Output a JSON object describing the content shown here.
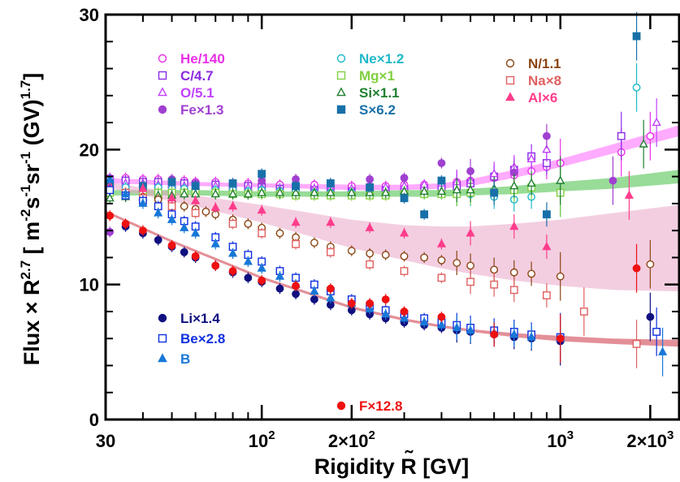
{
  "chart_data": {
    "type": "scatter",
    "title": "",
    "xlabel": "Rigidity  R̃ [GV]",
    "ylabel": "Flux × R̃^2.7 [ m⁻²s⁻¹sr⁻¹ (GV)^1.7]",
    "ylabel_parts": {
      "prefix": "Flux × ",
      "var": "R",
      "tilde": "˜",
      "exp": "2.7",
      "bracket_open": " [ m",
      "m_exp": "-2",
      "s": "s",
      "s_exp": "-1",
      "sr": "sr",
      "sr_exp": "-1",
      "unit": " (GV)",
      "unit_exp": "1.7",
      "bracket_close": "]"
    },
    "xlabel_parts": {
      "main": "Rigidity ",
      "var": "R",
      "tilde": "˜",
      "unit": " [GV]"
    },
    "x_scale": "log",
    "xlim": [
      30,
      2500
    ],
    "ylim": [
      0,
      30
    ],
    "x_ticks": [
      {
        "v": 30,
        "label": "30"
      },
      {
        "v": 100,
        "label": "10",
        "sup": "2"
      },
      {
        "v": 200,
        "label": "2×10",
        "sup": "2"
      },
      {
        "v": 1000,
        "label": "10",
        "sup": "3"
      },
      {
        "v": 2000,
        "label": "2×10",
        "sup": "3"
      }
    ],
    "y_ticks": [
      {
        "v": 0,
        "label": "0"
      },
      {
        "v": 10,
        "label": "10"
      },
      {
        "v": 20,
        "label": "20"
      },
      {
        "v": 30,
        "label": "30"
      }
    ],
    "grid": false,
    "legend_placement": "inside, top and bottom-left groups",
    "series": [
      {
        "name": "He/140",
        "color": "#e830e8",
        "marker": "circle-open",
        "x": [
          31,
          35,
          40,
          45,
          50,
          55,
          60,
          70,
          80,
          90,
          100,
          115,
          130,
          150,
          170,
          200,
          230,
          260,
          300,
          350,
          400,
          450,
          500,
          600,
          700,
          800,
          900,
          1000,
          1600,
          2000
        ],
        "y": [
          17.9,
          17.9,
          17.8,
          17.8,
          17.7,
          17.7,
          17.6,
          17.6,
          17.5,
          17.5,
          17.5,
          17.4,
          17.4,
          17.4,
          17.3,
          17.3,
          17.3,
          17.3,
          17.4,
          17.4,
          17.5,
          17.6,
          17.7,
          17.9,
          18.1,
          18.4,
          18.7,
          19.0,
          19.8,
          21.0
        ]
      },
      {
        "name": "C/4.7",
        "color": "#8a2be2",
        "marker": "square-open",
        "x": [
          31,
          35,
          40,
          45,
          50,
          55,
          60,
          70,
          80,
          90,
          100,
          115,
          130,
          150,
          170,
          200,
          230,
          260,
          300,
          350,
          400,
          450,
          500,
          600,
          700,
          800,
          900,
          1600
        ],
        "y": [
          17.8,
          17.7,
          17.6,
          17.6,
          17.5,
          17.5,
          17.4,
          17.4,
          17.3,
          17.3,
          17.2,
          17.1,
          17.1,
          17.0,
          17.0,
          16.9,
          16.9,
          17.0,
          17.0,
          17.1,
          17.2,
          17.3,
          17.5,
          18.0,
          18.5,
          19.5,
          19.0,
          21.0
        ]
      },
      {
        "name": "O/5.1",
        "color": "#c040ff",
        "marker": "triangle-open",
        "x": [
          31,
          35,
          40,
          45,
          50,
          55,
          60,
          70,
          80,
          90,
          100,
          115,
          130,
          150,
          170,
          200,
          230,
          260,
          300,
          350,
          400,
          450,
          500,
          600,
          700,
          800,
          900,
          2100
        ],
        "y": [
          17.6,
          17.5,
          17.5,
          17.4,
          17.4,
          17.3,
          17.3,
          17.3,
          17.2,
          17.2,
          17.2,
          17.1,
          17.1,
          17.1,
          17.1,
          17.1,
          17.2,
          17.2,
          17.3,
          17.4,
          17.5,
          17.6,
          17.7,
          18.2,
          18.7,
          19.3,
          20.0,
          22.0
        ]
      },
      {
        "name": "Fe×1.3",
        "color": "#a040d0",
        "marker": "circle-filled",
        "x": [
          31,
          40,
          50,
          60,
          80,
          100,
          130,
          170,
          230,
          300,
          400,
          500,
          700,
          900,
          1500
        ],
        "y": [
          13.9,
          16.9,
          17.8,
          17.5,
          17.2,
          17.7,
          17.8,
          17.5,
          17.8,
          17.9,
          19.0,
          18.4,
          18.3,
          21.0,
          17.7
        ]
      },
      {
        "name": "Ne×1.2",
        "color": "#20b8c8",
        "marker": "circle-open",
        "x": [
          31,
          35,
          40,
          45,
          50,
          55,
          60,
          70,
          80,
          90,
          100,
          115,
          130,
          150,
          170,
          200,
          230,
          260,
          300,
          350,
          400,
          450,
          500,
          600,
          700,
          800,
          1000,
          1800
        ],
        "y": [
          17.2,
          17.2,
          17.1,
          17.2,
          17.1,
          17.1,
          17.0,
          17.0,
          17.0,
          16.9,
          17.0,
          16.9,
          16.9,
          16.8,
          16.8,
          16.8,
          16.8,
          16.7,
          16.7,
          16.7,
          16.7,
          16.7,
          16.7,
          16.5,
          16.3,
          16.5,
          16.8,
          24.6
        ]
      },
      {
        "name": "Mg×1",
        "color": "#80d040",
        "marker": "square-open",
        "x": [
          31,
          35,
          40,
          45,
          50,
          55,
          60,
          70,
          80,
          90,
          100,
          115,
          130,
          150,
          170,
          200,
          230,
          260,
          300,
          350,
          400,
          450,
          500,
          600,
          700,
          800,
          1000
        ],
        "y": [
          16.8,
          16.8,
          16.8,
          16.8,
          16.8,
          16.8,
          16.8,
          16.8,
          16.7,
          16.7,
          16.7,
          16.7,
          16.6,
          16.6,
          16.6,
          16.6,
          16.6,
          16.6,
          16.7,
          16.7,
          16.7,
          16.7,
          16.8,
          16.8,
          17.0,
          17.2,
          16.8
        ]
      },
      {
        "name": "Si×1.1",
        "color": "#208030",
        "marker": "triangle-open",
        "x": [
          31,
          35,
          40,
          45,
          50,
          55,
          60,
          70,
          80,
          90,
          100,
          115,
          130,
          150,
          170,
          200,
          230,
          260,
          300,
          350,
          400,
          450,
          500,
          600,
          700,
          800,
          1000,
          1900
        ],
        "y": [
          16.4,
          16.5,
          16.5,
          16.6,
          16.6,
          16.7,
          16.7,
          16.7,
          16.7,
          16.7,
          16.8,
          16.8,
          16.8,
          16.8,
          16.8,
          16.8,
          16.8,
          16.8,
          16.9,
          16.9,
          16.9,
          17.0,
          17.0,
          17.1,
          17.3,
          17.5,
          17.7,
          20.4
        ]
      },
      {
        "name": "S×6.2",
        "color": "#1870a8",
        "marker": "square-filled",
        "x": [
          31,
          40,
          50,
          60,
          80,
          100,
          130,
          170,
          230,
          300,
          350,
          400,
          600,
          900,
          1800
        ],
        "y": [
          17.5,
          17.3,
          17.6,
          17.3,
          17.5,
          18.2,
          17.3,
          17.5,
          17.2,
          16.4,
          15.2,
          17.7,
          16.8,
          15.2,
          28.4
        ]
      },
      {
        "name": "N/1.1",
        "color": "#8b4513",
        "marker": "circle-open",
        "x": [
          35,
          40,
          45,
          50,
          55,
          60,
          65,
          70,
          80,
          90,
          100,
          115,
          130,
          150,
          170,
          200,
          230,
          260,
          300,
          350,
          400,
          450,
          500,
          600,
          700,
          800,
          1000,
          2000
        ],
        "y": [
          16.6,
          16.5,
          16.3,
          16.1,
          15.8,
          15.6,
          15.4,
          15.2,
          14.8,
          14.5,
          14.2,
          13.8,
          13.5,
          13.1,
          12.8,
          12.5,
          12.3,
          12.2,
          12.1,
          12.0,
          11.8,
          11.6,
          11.4,
          11.1,
          10.9,
          10.8,
          10.6,
          11.5
        ]
      },
      {
        "name": "Na×8",
        "color": "#e06060",
        "marker": "square-open",
        "x": [
          35,
          40,
          50,
          60,
          80,
          100,
          130,
          170,
          230,
          300,
          400,
          500,
          600,
          700,
          900,
          1200,
          1800
        ],
        "y": [
          16.8,
          16.4,
          15.8,
          15.3,
          14.5,
          13.8,
          13.0,
          12.4,
          11.5,
          11.0,
          10.5,
          10.2,
          10.0,
          9.6,
          9.2,
          8.0,
          5.6
        ]
      },
      {
        "name": "Al×6",
        "color": "#ff3c8c",
        "marker": "triangle-filled",
        "x": [
          31,
          40,
          50,
          60,
          70,
          80,
          100,
          130,
          170,
          230,
          300,
          400,
          500,
          700,
          900,
          1700
        ],
        "y": [
          17.3,
          17.1,
          16.4,
          16.2,
          15.7,
          15.8,
          15.5,
          14.6,
          14.6,
          14.2,
          13.8,
          13.0,
          13.8,
          14.3,
          12.8,
          16.6
        ]
      },
      {
        "name": "Li×1.4",
        "color": "#101080",
        "marker": "circle-filled",
        "x": [
          35,
          40,
          45,
          50,
          55,
          60,
          70,
          80,
          90,
          100,
          115,
          130,
          150,
          170,
          200,
          230,
          260,
          300,
          350,
          400,
          450,
          500,
          600,
          700,
          800,
          1000,
          2000
        ],
        "y": [
          14.3,
          13.8,
          13.3,
          12.8,
          12.4,
          12.0,
          11.4,
          10.9,
          10.5,
          10.2,
          9.7,
          9.3,
          8.9,
          8.5,
          8.1,
          7.8,
          7.5,
          7.2,
          7.0,
          6.8,
          6.6,
          6.5,
          6.3,
          6.1,
          6.0,
          5.8,
          7.6
        ]
      },
      {
        "name": "Be×2.8",
        "color": "#1030e0",
        "marker": "square-open",
        "x": [
          31,
          35,
          40,
          45,
          50,
          55,
          60,
          70,
          80,
          90,
          100,
          115,
          130,
          150,
          170,
          200,
          230,
          260,
          300,
          350,
          400,
          450,
          500,
          600,
          700,
          800,
          1000,
          2100
        ],
        "y": [
          17.0,
          16.6,
          16.2,
          15.8,
          15.2,
          14.7,
          14.3,
          13.5,
          12.8,
          12.2,
          11.7,
          11.0,
          10.5,
          10.0,
          9.5,
          8.9,
          8.4,
          8.1,
          7.8,
          7.5,
          7.2,
          7.0,
          6.8,
          6.6,
          6.5,
          6.3,
          6.1,
          6.5
        ]
      },
      {
        "name": "B",
        "color": "#1878d8",
        "marker": "triangle-filled",
        "x": [
          31,
          35,
          40,
          45,
          50,
          55,
          60,
          70,
          80,
          90,
          100,
          115,
          130,
          150,
          170,
          200,
          230,
          260,
          300,
          350,
          400,
          450,
          500,
          600,
          700,
          800,
          1000,
          2200
        ],
        "y": [
          17.8,
          16.7,
          16.0,
          15.3,
          14.8,
          14.2,
          13.8,
          13.0,
          12.3,
          11.7,
          11.2,
          10.6,
          10.0,
          9.5,
          9.0,
          8.6,
          8.2,
          7.8,
          7.5,
          7.2,
          7.0,
          6.8,
          6.6,
          6.4,
          6.3,
          6.1,
          6.0,
          5.0
        ]
      },
      {
        "name": "F×12.8",
        "color": "#ee1111",
        "marker": "circle-filled",
        "x": [
          31,
          35,
          40,
          50,
          60,
          70,
          80,
          100,
          130,
          170,
          200,
          230,
          260,
          300,
          400,
          600,
          1000,
          1800
        ],
        "y": [
          15.1,
          14.5,
          14.0,
          12.9,
          12.1,
          11.4,
          11.0,
          10.3,
          9.9,
          9.7,
          8.6,
          8.6,
          8.9,
          8.0,
          7.6,
          6.3,
          6.0,
          11.2
        ]
      }
    ],
    "bands": [
      {
        "name": "He-C-O fit",
        "color": "#ff66ff",
        "x": [
          30,
          60,
          100,
          200,
          300,
          400,
          500,
          700,
          1000,
          1500,
          2500
        ],
        "lo": [
          17.5,
          17.3,
          17.2,
          17.0,
          17.0,
          17.1,
          17.3,
          17.9,
          18.7,
          19.7,
          21.0
        ],
        "hi": [
          17.9,
          17.6,
          17.5,
          17.4,
          17.4,
          17.5,
          17.8,
          18.5,
          19.3,
          20.4,
          21.8
        ]
      },
      {
        "name": "Ne-Mg-Si fit",
        "color": "#44c044",
        "x": [
          30,
          60,
          100,
          200,
          300,
          400,
          500,
          700,
          1000,
          1500,
          2500
        ],
        "lo": [
          16.6,
          16.6,
          16.5,
          16.5,
          16.5,
          16.5,
          16.6,
          16.7,
          16.9,
          17.1,
          17.5
        ],
        "hi": [
          17.0,
          17.0,
          16.9,
          16.9,
          17.0,
          17.0,
          17.1,
          17.3,
          17.6,
          17.9,
          18.5
        ]
      },
      {
        "name": "N-Na-Al fit",
        "color": "#e9a6c8",
        "x": [
          30,
          60,
          100,
          200,
          300,
          400,
          500,
          700,
          1000,
          1500,
          2500
        ],
        "lo": [
          17.2,
          15.8,
          14.6,
          12.7,
          11.8,
          11.2,
          10.8,
          10.3,
          9.9,
          9.6,
          9.5
        ],
        "hi": [
          17.6,
          16.6,
          15.9,
          14.8,
          14.4,
          14.3,
          14.3,
          14.5,
          14.8,
          15.3,
          15.9
        ]
      },
      {
        "name": "Li-Be-B-F fit",
        "color": "#cc3344",
        "x": [
          30,
          50,
          100,
          200,
          300,
          400,
          500,
          700,
          1000,
          1500,
          2500
        ],
        "lo": [
          15.3,
          13.1,
          10.4,
          8.2,
          7.3,
          6.8,
          6.5,
          6.1,
          5.8,
          5.6,
          5.4
        ],
        "hi": [
          15.5,
          13.3,
          10.6,
          8.4,
          7.5,
          7.0,
          6.7,
          6.4,
          6.2,
          6.0,
          5.9
        ]
      }
    ],
    "legend_rows": [
      {
        "name": "He/140",
        "color": "#e830e8",
        "marker": "circle-open"
      },
      {
        "name": "C/4.7",
        "color": "#8a2be2",
        "marker": "square-open"
      },
      {
        "name": "O/5.1",
        "color": "#c040ff",
        "marker": "triangle-open"
      },
      {
        "name": "Fe×1.3",
        "color": "#a040d0",
        "marker": "circle-filled"
      },
      {
        "name": "Ne×1.2",
        "color": "#20b8c8",
        "marker": "circle-open"
      },
      {
        "name": "Mg×1",
        "color": "#80d040",
        "marker": "square-open"
      },
      {
        "name": "Si×1.1",
        "color": "#208030",
        "marker": "triangle-open"
      },
      {
        "name": "S×6.2",
        "color": "#1870a8",
        "marker": "square-filled"
      },
      {
        "name": "N/1.1",
        "color": "#8b4513",
        "marker": "circle-open"
      },
      {
        "name": "Na×8",
        "color": "#e06060",
        "marker": "square-open"
      },
      {
        "name": "Al×6",
        "color": "#ff3c8c",
        "marker": "triangle-filled"
      },
      {
        "name": "Li×1.4",
        "color": "#101080",
        "marker": "circle-filled"
      },
      {
        "name": "Be×2.8",
        "color": "#1030e0",
        "marker": "square-open"
      },
      {
        "name": "B",
        "color": "#1878d8",
        "marker": "triangle-filled"
      },
      {
        "name": "F×12.8",
        "color": "#ee1111",
        "marker": "circle-filled"
      }
    ]
  }
}
